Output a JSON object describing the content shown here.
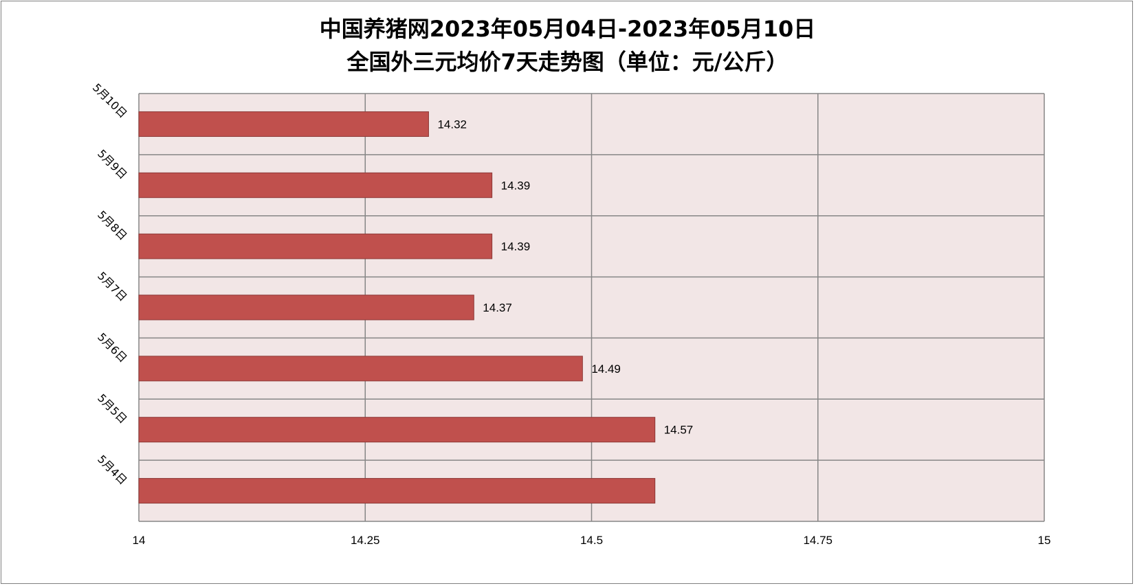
{
  "chart_data": {
    "type": "bar",
    "orientation": "horizontal",
    "title_line1": "中国养猪网2023年05月04日-2023年05月10日",
    "title_line2": "全国外三元均价7天走势图（单位：元/公斤）",
    "categories": [
      "5月10日",
      "5月9日",
      "5月8日",
      "5月7日",
      "5月6日",
      "5月5日",
      "5月4日"
    ],
    "values": [
      14.32,
      14.39,
      14.39,
      14.37,
      14.49,
      14.57,
      14.57
    ],
    "data_labels": [
      "14.32",
      "14.39",
      "14.39",
      "14.37",
      "14.49",
      "14.57",
      ""
    ],
    "xlim": [
      14,
      15
    ],
    "x_ticks": [
      "14",
      "14.25",
      "14.5",
      "14.75",
      "15"
    ],
    "grid": true,
    "colors": {
      "bar_fill": "#c0504d",
      "bar_stroke": "#8c3836",
      "plot_background": "#f2e6e6",
      "gridline": "#868686"
    }
  }
}
